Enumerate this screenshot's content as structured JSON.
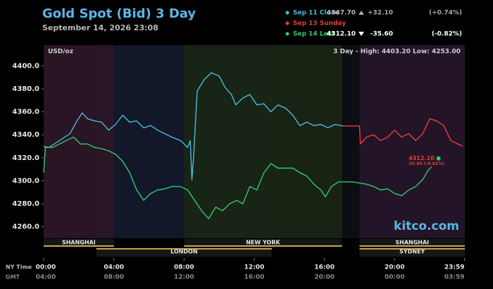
{
  "chart_data": {
    "type": "line",
    "title": "Gold Spot (Bid) 3 Day",
    "subtitle": "September 14, 2026 23:08",
    "unit_label": "USD/oz",
    "range_label": "3 Day - High: 4403.20  Low: 4253.00",
    "watermark": "kitco.com",
    "x_axis_label": "NY Time",
    "x2_axis_label": "GMT",
    "xlim": [
      0,
      24
    ],
    "xticks": [
      {
        "value": 0,
        "label": "00:00"
      },
      {
        "value": 4,
        "label": "04:00"
      },
      {
        "value": 8,
        "label": "08:00"
      },
      {
        "value": 12,
        "label": "12:00"
      },
      {
        "value": 16,
        "label": "16:00"
      },
      {
        "value": 20,
        "label": "20:00"
      },
      {
        "value": 23.98,
        "label": "23:59"
      }
    ],
    "x2tick_labels": [
      "04:00",
      "08:00",
      "12:00",
      "16:00",
      "20:00",
      "00:00",
      "03:59"
    ],
    "ylim": [
      4250,
      4418
    ],
    "yticks": [
      {
        "value": 4260,
        "label": "4260.0"
      },
      {
        "value": 4280,
        "label": "4280.0"
      },
      {
        "value": 4300,
        "label": "4300.0"
      },
      {
        "value": 4320,
        "label": "4320.0"
      },
      {
        "value": 4340,
        "label": "4340.0"
      },
      {
        "value": 4360,
        "label": "4360.0"
      },
      {
        "value": 4380,
        "label": "4380.0"
      },
      {
        "value": 4400,
        "label": "4400.0"
      }
    ],
    "grid": false,
    "sessions": [
      {
        "name": "LONDON",
        "start": 3,
        "end": 13,
        "row": 2,
        "color": "#131a2c"
      },
      {
        "name": "SHANGHAI",
        "start": 0,
        "end": 4,
        "row": 1,
        "color": "#2c1626"
      },
      {
        "name": "NEW YORK",
        "start": 8,
        "end": 17,
        "row": 1,
        "color": "#1a2614"
      },
      {
        "name": "SHANGHAI",
        "start": 18,
        "end": 24,
        "row": 1,
        "color": "#241528"
      },
      {
        "name": "SYDNEY",
        "start": 18,
        "end": 24,
        "row": 2,
        "color": "#241528"
      }
    ],
    "series": [
      {
        "name": "Sep 11 Close",
        "color": "#4cb8dc",
        "last": "4347.70",
        "change": "+32.10",
        "change_pct": "(+0.74%)",
        "direction": "up",
        "x": [
          0,
          0.3,
          0.9,
          1.5,
          1.9,
          2.2,
          2.5,
          2.9,
          3.3,
          3.7,
          4.1,
          4.5,
          4.9,
          5.3,
          5.7,
          6.1,
          6.5,
          6.9,
          7.3,
          7.8,
          8.2,
          8.35,
          8.45,
          8.55,
          8.75,
          9.15,
          9.55,
          10,
          10.35,
          10.7,
          10.95,
          11.35,
          11.75,
          12.15,
          12.55,
          12.95,
          13.35,
          13.8,
          14.2,
          14.6,
          15,
          15.4,
          15.8,
          16.2,
          16.6,
          17.05
        ],
        "values": [
          4330,
          4329,
          4335,
          4341,
          4352,
          4359,
          4354,
          4352,
          4351,
          4344,
          4349,
          4357,
          4351,
          4352,
          4346,
          4348,
          4344,
          4341,
          4338,
          4335,
          4329,
          4335,
          4301,
          4322,
          4378,
          4388,
          4394,
          4391,
          4381,
          4375,
          4366,
          4372,
          4375,
          4366,
          4367,
          4360,
          4366,
          4363,
          4357,
          4348,
          4351,
          4348,
          4349,
          4346,
          4349,
          4347.7
        ]
      },
      {
        "name": "Sep 13 Sunday",
        "color": "#e0403c",
        "x": [
          17.05,
          18,
          18.05,
          18.4,
          18.8,
          19.2,
          19.6,
          20,
          20.4,
          20.8,
          21.2,
          21.6,
          22,
          22.4,
          22.8,
          23.2,
          23.6,
          23.9
        ],
        "values": [
          4347.7,
          4347.7,
          4332,
          4338,
          4340,
          4335,
          4338,
          4344,
          4338,
          4341,
          4335,
          4341,
          4354,
          4352,
          4348,
          4335,
          4332,
          4330
        ]
      },
      {
        "name": "Sep 14 Last",
        "color": "#34c86c",
        "last": "4312.10",
        "change": "-35.60",
        "change_pct": "(-0.82%)",
        "direction": "down",
        "end_label": "4312.10",
        "end_sublabel": "-35.60 (-0.82%)",
        "x": [
          0,
          0.1,
          0.5,
          0.9,
          1.3,
          1.7,
          2.1,
          2.5,
          2.9,
          3.3,
          3.7,
          4.1,
          4.5,
          4.9,
          5.3,
          5.7,
          6.1,
          6.5,
          6.9,
          7.3,
          7.8,
          8.2,
          8.6,
          9,
          9.4,
          9.8,
          10.2,
          10.6,
          11,
          11.35,
          11.75,
          12.15,
          12.55,
          12.95,
          13.35,
          13.8,
          14.2,
          14.6,
          15,
          15.4,
          15.8,
          16.05,
          16.4,
          16.8,
          17.2,
          17.6,
          18,
          18.4,
          18.8,
          19.2,
          19.6,
          20,
          20.4,
          20.8,
          21.2,
          21.6,
          21.9,
          22.1
        ],
        "values": [
          4307,
          4329,
          4329,
          4332,
          4335,
          4338,
          4332,
          4332,
          4329,
          4328,
          4326,
          4323,
          4317,
          4307,
          4292,
          4283,
          4289,
          4292,
          4293,
          4295,
          4295,
          4292,
          4283,
          4274,
          4267,
          4277,
          4274,
          4280,
          4283,
          4280,
          4295,
          4292,
          4307,
          4315,
          4311,
          4311,
          4311,
          4307,
          4304,
          4297,
          4292,
          4286,
          4295,
          4299,
          4299,
          4299,
          4298,
          4297,
          4295,
          4292,
          4293,
          4289,
          4287,
          4292,
          4295,
          4301,
          4309,
          4312.1
        ]
      }
    ]
  }
}
